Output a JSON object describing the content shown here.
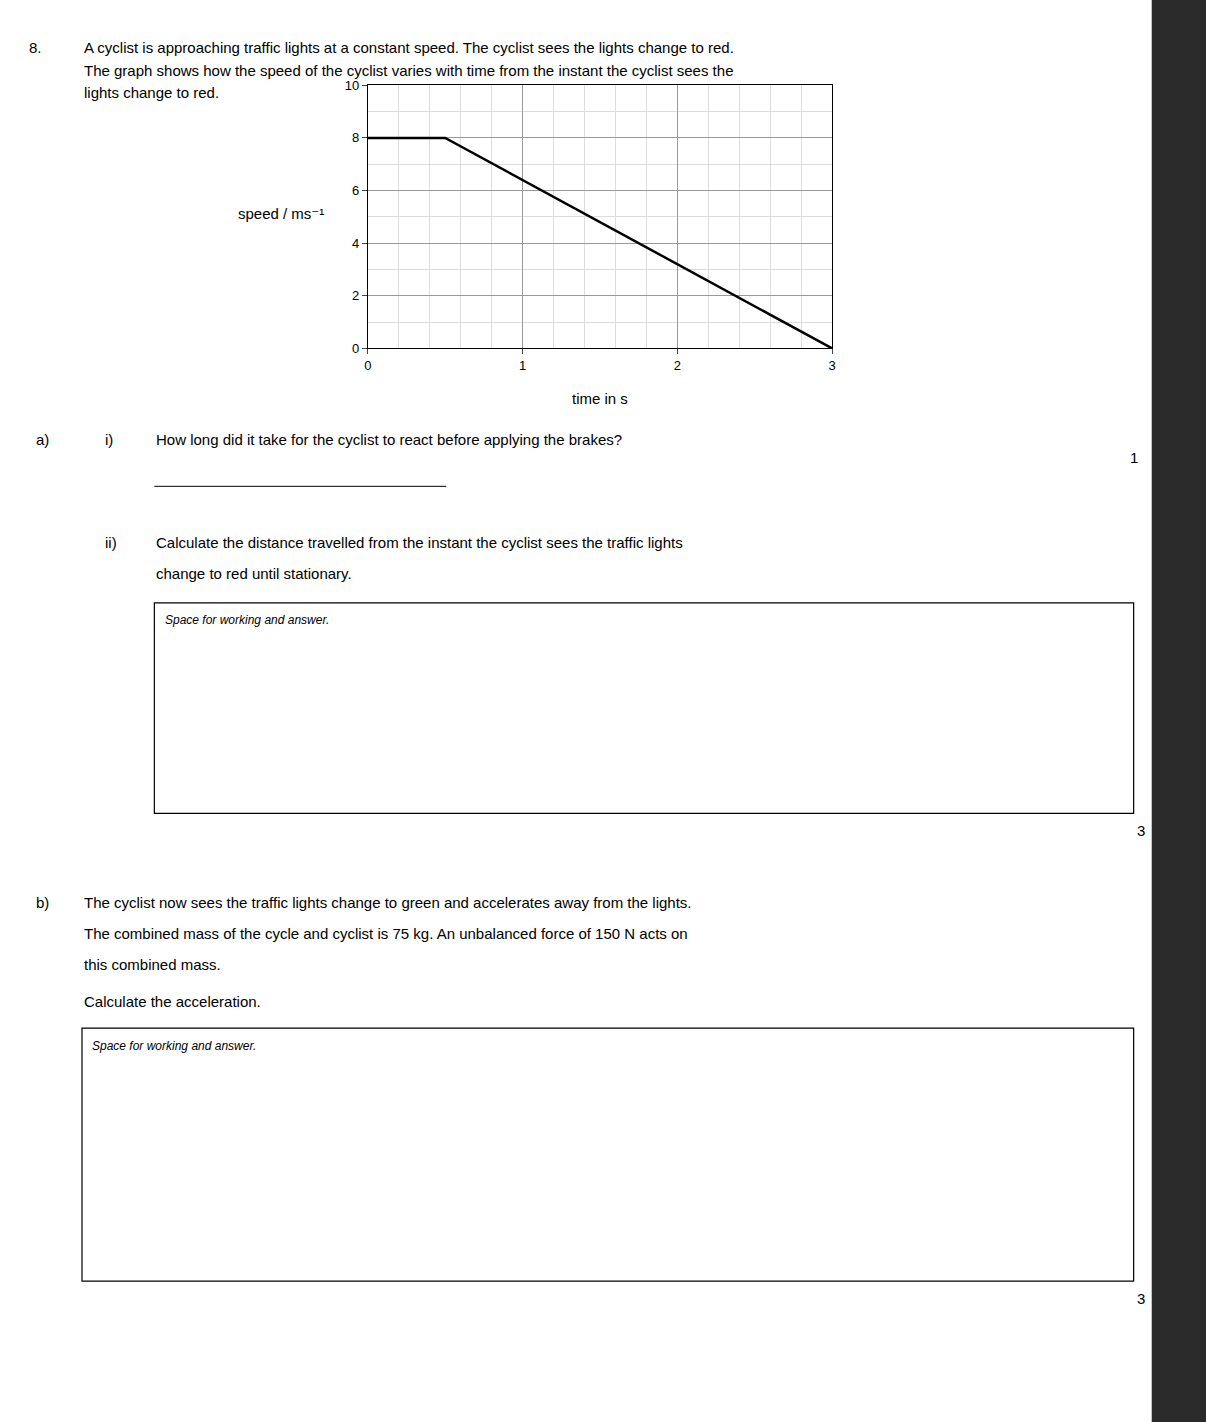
{
  "chart_data": {
    "type": "line",
    "xlabel": "time in s",
    "ylabel": "speed / ms⁻¹",
    "x": [
      0,
      0.5,
      3.0
    ],
    "values": [
      8,
      8,
      0
    ],
    "color": "#000000",
    "xlim": [
      0,
      3
    ],
    "ylim": [
      0,
      10
    ],
    "xticks": [
      0,
      1,
      2,
      3
    ],
    "yticks": [
      0,
      2,
      4,
      6,
      8,
      10
    ],
    "grid": true,
    "annotations": [
      "8.",
      "A cyclist is approaching traffic lights at a constant speed. The cyclist sees the lights change to red.",
      "The graph shows how the speed of the cyclist varies with time from the instant the cyclist sees the",
      "lights change to red.",
      "a)",
      "i)",
      "How long did it take for the cyclist to react before applying the brakes?",
      "1",
      "ii)",
      "Calculate the distance travelled from the instant the cyclist sees the traffic lights",
      "change to red until stationary.",
      "Space for working and answer.",
      "3",
      "b)",
      "The cyclist now sees the traffic lights change to green and accelerates away from the lights.",
      "The combined mass of the cycle and cyclist is 75 kg. An unbalanced force of 150 N acts on",
      "this combined mass.",
      "Calculate the acceleration.",
      "Space for working and answer.",
      "3"
    ]
  }
}
